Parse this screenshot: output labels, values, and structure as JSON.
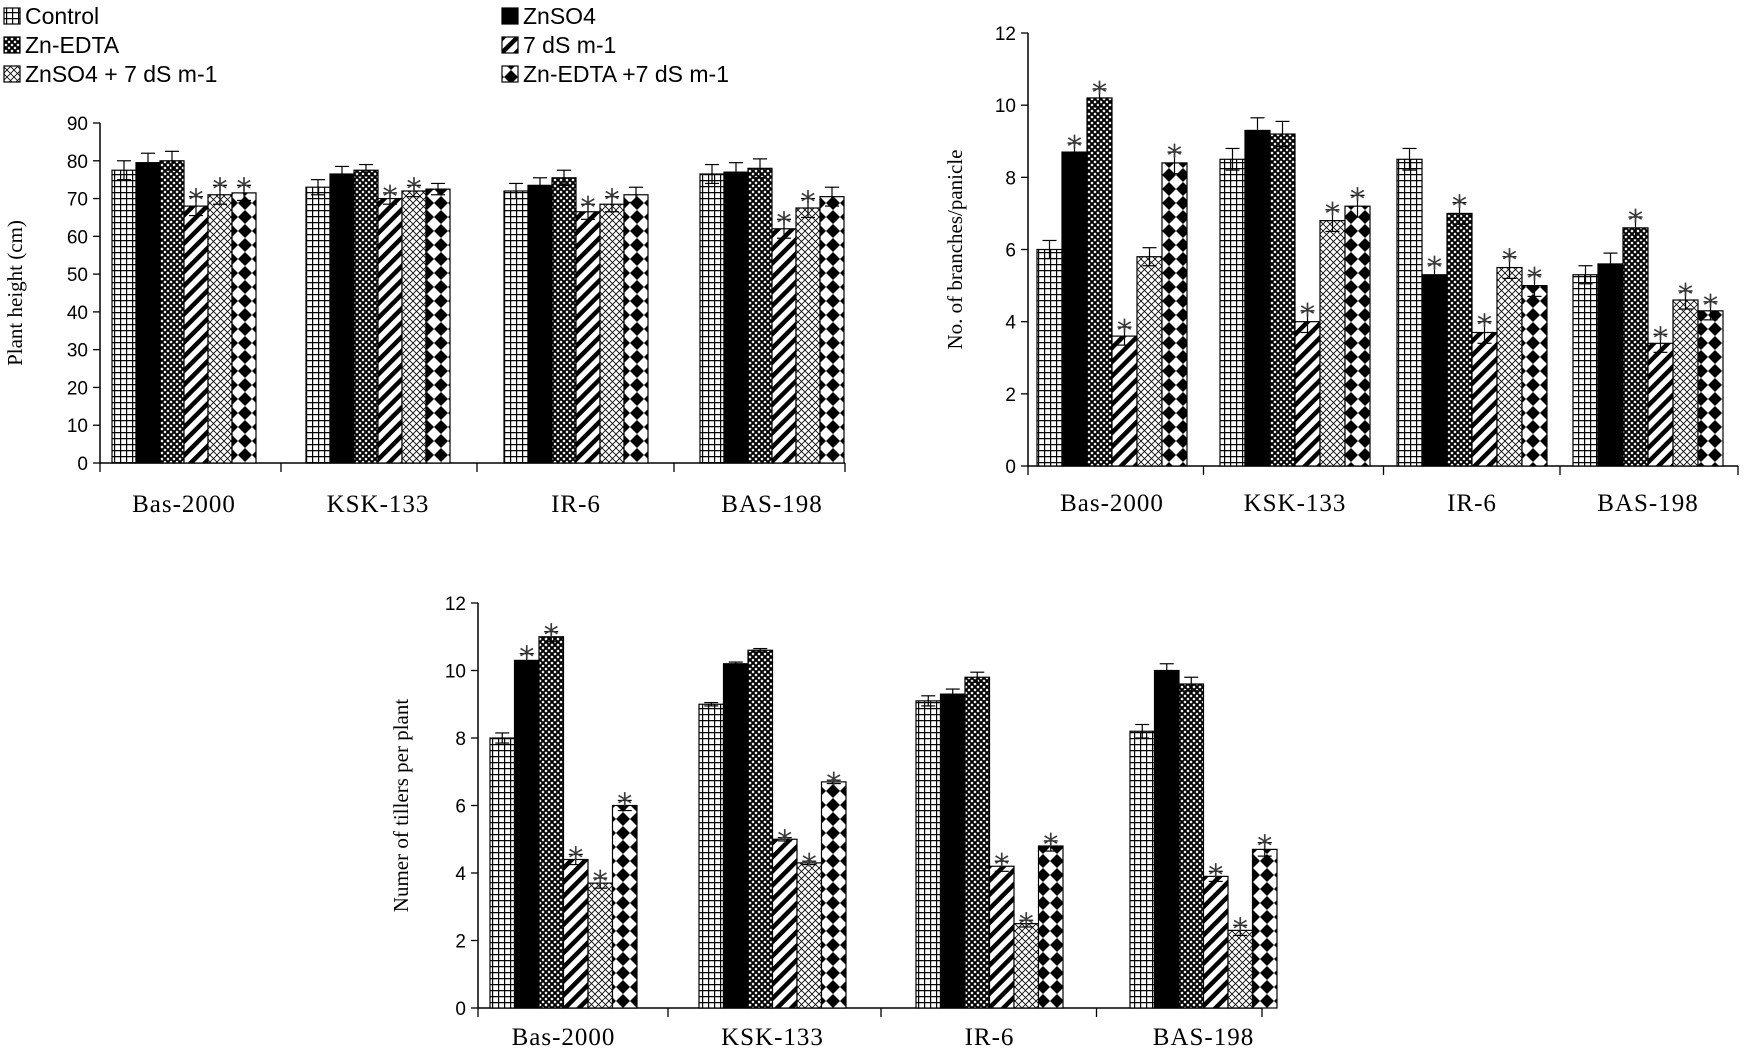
{
  "legend": [
    {
      "name": "Control",
      "pattern": "grid"
    },
    {
      "name": "ZnSO4",
      "pattern": "solid"
    },
    {
      "name": "Zn-EDTA",
      "pattern": "check"
    },
    {
      "name": "7 dS m-1",
      "pattern": "diag"
    },
    {
      "name": "ZnSO4 + 7 dS m-1",
      "pattern": "lattice"
    },
    {
      "name": "Zn-EDTA +7 dS m-1",
      "pattern": "diamond"
    }
  ],
  "colors": {
    "bar_stroke": "#000000",
    "fill_dark": "#000000",
    "background": "#ffffff"
  },
  "chart_data": [
    {
      "type": "bar",
      "title": "",
      "xlabel": "",
      "ylabel": "Plant height (cm)",
      "ylim": [
        0,
        90
      ],
      "yticks": [
        0,
        10,
        20,
        30,
        40,
        50,
        60,
        70,
        80,
        90
      ],
      "categories": [
        "Bas-2000",
        "KSK-133",
        "IR-6",
        "BAS-198"
      ],
      "series": [
        {
          "name": "Control",
          "values": [
            77.5,
            73,
            72,
            76.5
          ],
          "errors": [
            2.5,
            2,
            2,
            2.5
          ],
          "significant": [
            false,
            false,
            false,
            false
          ]
        },
        {
          "name": "ZnSO4",
          "values": [
            79.5,
            76.5,
            73.5,
            77
          ],
          "errors": [
            2.5,
            2,
            2,
            2.5
          ],
          "significant": [
            false,
            false,
            false,
            false
          ]
        },
        {
          "name": "Zn-EDTA",
          "values": [
            80,
            77.5,
            75.5,
            78
          ],
          "errors": [
            2.5,
            1.5,
            2,
            2.5
          ],
          "significant": [
            false,
            false,
            false,
            false
          ]
        },
        {
          "name": "7 dS m-1",
          "values": [
            68,
            70,
            66.5,
            62
          ],
          "errors": [
            2.5,
            1.5,
            2,
            2.5
          ],
          "significant": [
            true,
            true,
            true,
            true
          ]
        },
        {
          "name": "ZnSO4 + 7 dS m-1",
          "values": [
            71,
            72,
            68.5,
            67.5
          ],
          "errors": [
            2.5,
            1.5,
            2,
            2.5
          ],
          "significant": [
            true,
            true,
            true,
            true
          ]
        },
        {
          "name": "Zn-EDTA +7 dS m-1",
          "values": [
            71.5,
            72.5,
            71,
            70.5
          ],
          "errors": [
            2,
            1.5,
            2,
            2.5
          ],
          "significant": [
            true,
            false,
            false,
            false
          ]
        }
      ]
    },
    {
      "type": "bar",
      "title": "",
      "xlabel": "",
      "ylabel": "No. of branches/panicle",
      "ylim": [
        0,
        12
      ],
      "yticks": [
        0,
        2,
        4,
        6,
        8,
        10,
        12
      ],
      "categories": [
        "Bas-2000",
        "KSK-133",
        "IR-6",
        "BAS-198"
      ],
      "series": [
        {
          "name": "Control",
          "values": [
            6,
            8.5,
            8.5,
            5.3
          ],
          "errors": [
            0.25,
            0.3,
            0.3,
            0.25
          ],
          "significant": [
            false,
            false,
            false,
            false
          ]
        },
        {
          "name": "ZnSO4",
          "values": [
            8.7,
            9.3,
            5.3,
            5.6
          ],
          "errors": [
            0.25,
            0.35,
            0.3,
            0.3
          ],
          "significant": [
            true,
            false,
            true,
            false
          ]
        },
        {
          "name": "Zn-EDTA",
          "values": [
            10.2,
            9.2,
            7,
            6.6
          ],
          "errors": [
            0.25,
            0.35,
            0.3,
            0.3
          ],
          "significant": [
            true,
            false,
            true,
            true
          ]
        },
        {
          "name": "7 dS m-1",
          "values": [
            3.6,
            4,
            3.7,
            3.4
          ],
          "errors": [
            0.25,
            0.3,
            0.3,
            0.25
          ],
          "significant": [
            true,
            true,
            true,
            true
          ]
        },
        {
          "name": "ZnSO4 + 7 dS m-1",
          "values": [
            5.8,
            6.8,
            5.5,
            4.6
          ],
          "errors": [
            0.25,
            0.3,
            0.3,
            0.25
          ],
          "significant": [
            false,
            true,
            true,
            true
          ]
        },
        {
          "name": "Zn-EDTA +7 dS m-1",
          "values": [
            8.4,
            7.2,
            5,
            4.3
          ],
          "errors": [
            0.3,
            0.3,
            0.3,
            0.25
          ],
          "significant": [
            true,
            true,
            true,
            true
          ]
        }
      ]
    },
    {
      "type": "bar",
      "title": "",
      "xlabel": "",
      "ylabel": "Numer of tillers per plant",
      "ylim": [
        0,
        12
      ],
      "yticks": [
        0,
        2,
        4,
        6,
        8,
        10,
        12
      ],
      "categories": [
        "Bas-2000",
        "KSK-133",
        "IR-6",
        "BAS-198"
      ],
      "series": [
        {
          "name": "Control",
          "values": [
            8,
            9,
            9.1,
            8.2
          ],
          "errors": [
            0.15,
            0.05,
            0.15,
            0.2
          ],
          "significant": [
            false,
            false,
            false,
            false
          ]
        },
        {
          "name": "ZnSO4",
          "values": [
            10.3,
            10.2,
            9.3,
            10
          ],
          "errors": [
            0.2,
            0.05,
            0.15,
            0.2
          ],
          "significant": [
            true,
            false,
            false,
            false
          ]
        },
        {
          "name": "Zn-EDTA",
          "values": [
            11,
            10.6,
            9.8,
            9.6
          ],
          "errors": [
            0.15,
            0.05,
            0.15,
            0.2
          ],
          "significant": [
            true,
            false,
            false,
            false
          ]
        },
        {
          "name": "7 dS m-1",
          "values": [
            4.4,
            5,
            4.2,
            3.9
          ],
          "errors": [
            0.15,
            0.05,
            0.15,
            0.15
          ],
          "significant": [
            true,
            true,
            true,
            true
          ]
        },
        {
          "name": "ZnSO4 + 7 dS m-1",
          "values": [
            3.7,
            4.3,
            2.5,
            2.3
          ],
          "errors": [
            0.15,
            0.05,
            0.1,
            0.15
          ],
          "significant": [
            true,
            true,
            true,
            true
          ]
        },
        {
          "name": "Zn-EDTA +7 dS m-1",
          "values": [
            6,
            6.7,
            4.8,
            4.7
          ],
          "errors": [
            0.15,
            0.05,
            0.15,
            0.2
          ],
          "significant": [
            true,
            true,
            true,
            true
          ]
        }
      ]
    }
  ]
}
